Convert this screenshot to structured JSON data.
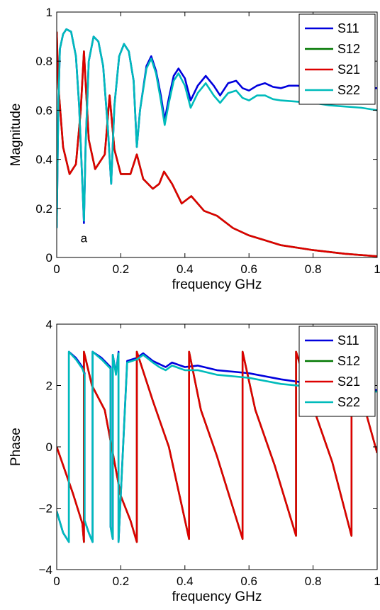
{
  "chart_data": [
    {
      "type": "line",
      "xlabel": "frequency  GHz",
      "ylabel": "Magnitude",
      "xlim": [
        0,
        1
      ],
      "ylim": [
        0,
        1
      ],
      "xticks": [
        0,
        0.2,
        0.4,
        0.6,
        0.8,
        1
      ],
      "xtick_labels": [
        "0",
        "0.2",
        "0.4",
        "0.6",
        "0.8",
        "1"
      ],
      "yticks": [
        0,
        0.2,
        0.4,
        0.6,
        0.8,
        1
      ],
      "ytick_labels": [
        "0",
        "0.2",
        "0.4",
        "0.6",
        "0.8",
        "1"
      ],
      "grid": false,
      "legend": "top-right",
      "annotations": [
        {
          "text": "a",
          "x": 0.085,
          "y": 0.08
        }
      ],
      "series": [
        {
          "name": "S11",
          "color": "#0000dd",
          "x": [
            0,
            0.005,
            0.01,
            0.02,
            0.03,
            0.045,
            0.06,
            0.07,
            0.08,
            0.085,
            0.09,
            0.1,
            0.115,
            0.13,
            0.145,
            0.16,
            0.17,
            0.18,
            0.195,
            0.21,
            0.225,
            0.24,
            0.25,
            0.26,
            0.28,
            0.295,
            0.31,
            0.325,
            0.337,
            0.35,
            0.365,
            0.38,
            0.4,
            0.418,
            0.44,
            0.465,
            0.49,
            0.51,
            0.535,
            0.56,
            0.58,
            0.6,
            0.625,
            0.65,
            0.675,
            0.7,
            0.725,
            0.75,
            0.8,
            0.85,
            0.9,
            0.95,
            1.0
          ],
          "y": [
            0.12,
            0.62,
            0.85,
            0.91,
            0.93,
            0.92,
            0.82,
            0.62,
            0.3,
            0.14,
            0.45,
            0.8,
            0.9,
            0.88,
            0.78,
            0.52,
            0.3,
            0.62,
            0.82,
            0.87,
            0.84,
            0.72,
            0.45,
            0.6,
            0.78,
            0.82,
            0.76,
            0.66,
            0.56,
            0.65,
            0.74,
            0.77,
            0.73,
            0.64,
            0.7,
            0.74,
            0.7,
            0.66,
            0.71,
            0.72,
            0.69,
            0.68,
            0.7,
            0.71,
            0.695,
            0.69,
            0.7,
            0.7,
            0.695,
            0.69,
            0.69,
            0.69,
            0.69
          ]
        },
        {
          "name": "S12",
          "color": "#007700",
          "x": [
            0,
            0.005,
            0.02,
            0.04,
            0.06,
            0.075,
            0.085,
            0.1,
            0.12,
            0.15,
            0.165,
            0.18,
            0.2,
            0.23,
            0.25,
            0.27,
            0.3,
            0.32,
            0.335,
            0.36,
            0.39,
            0.42,
            0.46,
            0.5,
            0.55,
            0.6,
            0.65,
            0.7,
            0.8,
            0.9,
            1.0
          ],
          "y": [
            0.92,
            0.7,
            0.45,
            0.34,
            0.38,
            0.6,
            0.84,
            0.48,
            0.36,
            0.42,
            0.66,
            0.44,
            0.34,
            0.34,
            0.42,
            0.32,
            0.28,
            0.3,
            0.35,
            0.3,
            0.22,
            0.25,
            0.19,
            0.17,
            0.12,
            0.09,
            0.07,
            0.05,
            0.03,
            0.015,
            0.005
          ]
        },
        {
          "name": "S21",
          "color": "#dd0000",
          "x": [
            0,
            0.005,
            0.02,
            0.04,
            0.06,
            0.075,
            0.085,
            0.1,
            0.12,
            0.15,
            0.165,
            0.18,
            0.2,
            0.23,
            0.25,
            0.27,
            0.3,
            0.32,
            0.335,
            0.36,
            0.39,
            0.42,
            0.46,
            0.5,
            0.55,
            0.6,
            0.65,
            0.7,
            0.8,
            0.9,
            1.0
          ],
          "y": [
            0.92,
            0.7,
            0.45,
            0.34,
            0.38,
            0.6,
            0.84,
            0.48,
            0.36,
            0.42,
            0.66,
            0.44,
            0.34,
            0.34,
            0.42,
            0.32,
            0.28,
            0.3,
            0.35,
            0.3,
            0.22,
            0.25,
            0.19,
            0.17,
            0.12,
            0.09,
            0.07,
            0.05,
            0.03,
            0.015,
            0.005
          ]
        },
        {
          "name": "S22",
          "color": "#00bbbb",
          "x": [
            0,
            0.005,
            0.01,
            0.02,
            0.03,
            0.045,
            0.06,
            0.07,
            0.08,
            0.085,
            0.09,
            0.1,
            0.115,
            0.13,
            0.145,
            0.16,
            0.17,
            0.18,
            0.195,
            0.21,
            0.225,
            0.24,
            0.25,
            0.26,
            0.28,
            0.295,
            0.31,
            0.325,
            0.337,
            0.35,
            0.365,
            0.38,
            0.4,
            0.418,
            0.44,
            0.465,
            0.49,
            0.51,
            0.535,
            0.56,
            0.58,
            0.6,
            0.625,
            0.65,
            0.675,
            0.7,
            0.75,
            0.8,
            0.85,
            0.9,
            0.95,
            1.0
          ],
          "y": [
            0.12,
            0.62,
            0.85,
            0.91,
            0.93,
            0.92,
            0.82,
            0.62,
            0.3,
            0.15,
            0.45,
            0.8,
            0.9,
            0.88,
            0.78,
            0.52,
            0.3,
            0.62,
            0.82,
            0.87,
            0.84,
            0.72,
            0.45,
            0.6,
            0.77,
            0.81,
            0.75,
            0.64,
            0.54,
            0.63,
            0.72,
            0.75,
            0.7,
            0.61,
            0.67,
            0.71,
            0.66,
            0.63,
            0.67,
            0.68,
            0.65,
            0.64,
            0.66,
            0.66,
            0.645,
            0.64,
            0.635,
            0.63,
            0.62,
            0.615,
            0.61,
            0.6
          ]
        }
      ]
    },
    {
      "type": "line",
      "xlabel": "frequency  GHz",
      "ylabel": "Phase",
      "xlim": [
        0,
        1
      ],
      "ylim": [
        -4,
        4
      ],
      "xticks": [
        0,
        0.2,
        0.4,
        0.6,
        0.8,
        1
      ],
      "xtick_labels": [
        "0",
        "0.2",
        "0.4",
        "0.6",
        "0.8",
        "1"
      ],
      "yticks": [
        -4,
        -2,
        0,
        2,
        4
      ],
      "ytick_labels": [
        "−4",
        "−2",
        "0",
        "2",
        "4"
      ],
      "grid": false,
      "legend": "top-right",
      "series": [
        {
          "name": "S11",
          "color": "#0000dd",
          "x": [
            0,
            0.02,
            0.038,
            0.038,
            0.06,
            0.08,
            0.087,
            0.087,
            0.1,
            0.112,
            0.112,
            0.14,
            0.168,
            0.168,
            0.175,
            0.175,
            0.185,
            0.193,
            0.193,
            0.22,
            0.25,
            0.27,
            0.3,
            0.32,
            0.34,
            0.36,
            0.4,
            0.44,
            0.5,
            0.55,
            0.6,
            0.7,
            0.8,
            0.9,
            1.0
          ],
          "y": [
            -2.1,
            -2.8,
            -3.1,
            3.1,
            2.9,
            2.6,
            2.4,
            -2.4,
            -2.8,
            -3.1,
            3.1,
            2.9,
            2.6,
            -2.6,
            -3.0,
            3.0,
            2.4,
            3.1,
            -3.1,
            2.8,
            2.9,
            3.05,
            2.8,
            2.7,
            2.6,
            2.75,
            2.6,
            2.65,
            2.5,
            2.45,
            2.4,
            2.2,
            2.05,
            1.95,
            1.85
          ]
        },
        {
          "name": "S12",
          "color": "#007700",
          "x": [
            0,
            0.05,
            0.08,
            0.085,
            0.085,
            0.11,
            0.15,
            0.2,
            0.23,
            0.25,
            0.25,
            0.3,
            0.35,
            0.413,
            0.413,
            0.45,
            0.5,
            0.58,
            0.58,
            0.62,
            0.68,
            0.747,
            0.747,
            0.8,
            0.86,
            0.92,
            0.92,
            0.96,
            1.0
          ],
          "y": [
            0,
            -1.5,
            -2.5,
            -3.1,
            3.1,
            2.0,
            1.2,
            -1.6,
            -2.4,
            -3.1,
            3.1,
            1.5,
            0.0,
            -3.0,
            3.1,
            1.2,
            -0.3,
            -3.0,
            3.1,
            1.2,
            -0.6,
            -2.9,
            3.1,
            1.3,
            -0.5,
            -2.9,
            3.0,
            1.3,
            -0.2
          ]
        },
        {
          "name": "S21",
          "color": "#dd0000",
          "x": [
            0,
            0.05,
            0.08,
            0.085,
            0.085,
            0.11,
            0.15,
            0.2,
            0.23,
            0.25,
            0.25,
            0.3,
            0.35,
            0.413,
            0.413,
            0.45,
            0.5,
            0.58,
            0.58,
            0.62,
            0.68,
            0.747,
            0.747,
            0.8,
            0.86,
            0.92,
            0.92,
            0.96,
            1.0
          ],
          "y": [
            0,
            -1.5,
            -2.5,
            -3.1,
            3.1,
            2.0,
            1.2,
            -1.6,
            -2.4,
            -3.1,
            3.1,
            1.5,
            0.0,
            -3.0,
            3.1,
            1.2,
            -0.3,
            -3.0,
            3.1,
            1.2,
            -0.6,
            -2.9,
            3.1,
            1.3,
            -0.5,
            -2.9,
            3.0,
            1.3,
            -0.2
          ]
        },
        {
          "name": "S22",
          "color": "#00bbbb",
          "x": [
            0,
            0.02,
            0.038,
            0.038,
            0.06,
            0.08,
            0.087,
            0.087,
            0.1,
            0.112,
            0.112,
            0.14,
            0.168,
            0.168,
            0.175,
            0.175,
            0.185,
            0.193,
            0.193,
            0.22,
            0.25,
            0.27,
            0.3,
            0.32,
            0.34,
            0.36,
            0.4,
            0.44,
            0.5,
            0.55,
            0.6,
            0.7,
            0.8,
            0.9,
            1.0
          ],
          "y": [
            -2.1,
            -2.8,
            -3.1,
            3.1,
            2.85,
            2.55,
            2.35,
            -2.4,
            -2.8,
            -3.1,
            3.1,
            2.85,
            2.55,
            -2.6,
            -3.0,
            3.0,
            2.35,
            3.05,
            -3.1,
            2.75,
            2.85,
            3.0,
            2.75,
            2.6,
            2.5,
            2.65,
            2.5,
            2.5,
            2.35,
            2.3,
            2.25,
            2.05,
            1.95,
            1.85,
            1.8
          ]
        }
      ]
    }
  ]
}
